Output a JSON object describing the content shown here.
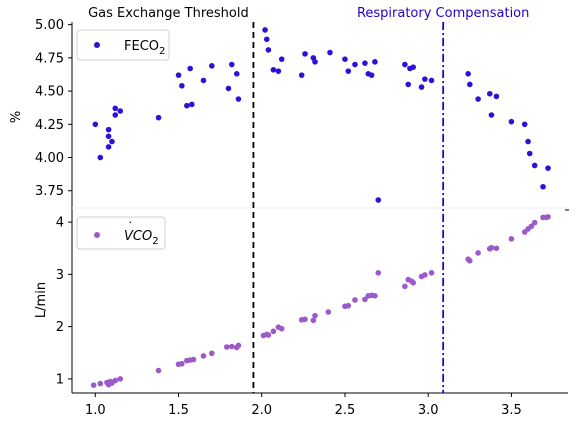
{
  "chart_data": [
    {
      "type": "scatter",
      "panel": "top",
      "ylabel": "%",
      "ylim": [
        3.62,
        5.02
      ],
      "yticks": [
        "3.75",
        "4.00",
        "4.25",
        "4.50",
        "4.75",
        "5.00"
      ],
      "legend": {
        "label": "FECO",
        "subscript": "2",
        "placement": "top-left"
      },
      "color": "#2b12d6",
      "points": [
        [
          1.0,
          4.25
        ],
        [
          1.03,
          4.0
        ],
        [
          1.08,
          4.08
        ],
        [
          1.08,
          4.16
        ],
        [
          1.08,
          4.21
        ],
        [
          1.1,
          4.12
        ],
        [
          1.12,
          4.32
        ],
        [
          1.12,
          4.37
        ],
        [
          1.15,
          4.35
        ],
        [
          1.38,
          4.3
        ],
        [
          1.5,
          4.62
        ],
        [
          1.52,
          4.54
        ],
        [
          1.55,
          4.39
        ],
        [
          1.57,
          4.67
        ],
        [
          1.58,
          4.4
        ],
        [
          1.65,
          4.58
        ],
        [
          1.7,
          4.69
        ],
        [
          1.8,
          4.52
        ],
        [
          1.82,
          4.7
        ],
        [
          1.85,
          4.63
        ],
        [
          1.86,
          4.44
        ],
        [
          2.02,
          4.96
        ],
        [
          2.03,
          4.89
        ],
        [
          2.04,
          4.81
        ],
        [
          2.07,
          4.66
        ],
        [
          2.1,
          4.65
        ],
        [
          2.12,
          4.74
        ],
        [
          2.24,
          4.62
        ],
        [
          2.26,
          4.78
        ],
        [
          2.31,
          4.75
        ],
        [
          2.32,
          4.72
        ],
        [
          2.41,
          4.79
        ],
        [
          2.5,
          4.74
        ],
        [
          2.52,
          4.65
        ],
        [
          2.56,
          4.7
        ],
        [
          2.62,
          4.71
        ],
        [
          2.64,
          4.63
        ],
        [
          2.66,
          4.62
        ],
        [
          2.68,
          4.72
        ],
        [
          2.7,
          3.68
        ],
        [
          2.86,
          4.7
        ],
        [
          2.88,
          4.55
        ],
        [
          2.89,
          4.67
        ],
        [
          2.91,
          4.68
        ],
        [
          2.96,
          4.53
        ],
        [
          2.98,
          4.59
        ],
        [
          3.02,
          4.58
        ],
        [
          3.24,
          4.63
        ],
        [
          3.25,
          4.55
        ],
        [
          3.3,
          4.44
        ],
        [
          3.37,
          4.48
        ],
        [
          3.38,
          4.32
        ],
        [
          3.41,
          4.46
        ],
        [
          3.5,
          4.27
        ],
        [
          3.58,
          4.25
        ],
        [
          3.6,
          4.12
        ],
        [
          3.61,
          4.03
        ],
        [
          3.64,
          3.94
        ],
        [
          3.69,
          3.78
        ],
        [
          3.72,
          3.92
        ]
      ]
    },
    {
      "type": "scatter",
      "panel": "bottom",
      "ylabel": "L/min",
      "xlabel": "",
      "ylim": [
        0.73,
        4.27
      ],
      "yticks": [
        "1",
        "2",
        "3",
        "4"
      ],
      "legend": {
        "label": "VCO",
        "subscript": "2",
        "dot": "˙",
        "placement": "top-left"
      },
      "color": "#9b59c9",
      "points": [
        [
          0.99,
          0.88
        ],
        [
          1.03,
          0.91
        ],
        [
          1.07,
          0.93
        ],
        [
          1.08,
          0.89
        ],
        [
          1.09,
          0.95
        ],
        [
          1.1,
          0.92
        ],
        [
          1.12,
          0.97
        ],
        [
          1.15,
          1.0
        ],
        [
          1.38,
          1.16
        ],
        [
          1.5,
          1.28
        ],
        [
          1.52,
          1.29
        ],
        [
          1.55,
          1.35
        ],
        [
          1.57,
          1.36
        ],
        [
          1.59,
          1.37
        ],
        [
          1.65,
          1.44
        ],
        [
          1.7,
          1.49
        ],
        [
          1.79,
          1.61
        ],
        [
          1.82,
          1.62
        ],
        [
          1.85,
          1.6
        ],
        [
          1.86,
          1.64
        ],
        [
          2.01,
          1.83
        ],
        [
          2.03,
          1.85
        ],
        [
          2.04,
          1.84
        ],
        [
          2.07,
          1.91
        ],
        [
          2.1,
          1.99
        ],
        [
          2.12,
          1.96
        ],
        [
          2.24,
          2.13
        ],
        [
          2.26,
          2.14
        ],
        [
          2.31,
          2.12
        ],
        [
          2.32,
          2.21
        ],
        [
          2.4,
          2.28
        ],
        [
          2.5,
          2.39
        ],
        [
          2.52,
          2.4
        ],
        [
          2.56,
          2.51
        ],
        [
          2.62,
          2.52
        ],
        [
          2.64,
          2.59
        ],
        [
          2.66,
          2.6
        ],
        [
          2.68,
          2.59
        ],
        [
          2.7,
          3.03
        ],
        [
          2.86,
          2.77
        ],
        [
          2.88,
          2.9
        ],
        [
          2.9,
          2.87
        ],
        [
          2.91,
          2.84
        ],
        [
          2.96,
          2.96
        ],
        [
          2.98,
          2.99
        ],
        [
          3.02,
          3.03
        ],
        [
          3.24,
          3.29
        ],
        [
          3.25,
          3.26
        ],
        [
          3.3,
          3.41
        ],
        [
          3.37,
          3.49
        ],
        [
          3.38,
          3.51
        ],
        [
          3.41,
          3.5
        ],
        [
          3.5,
          3.68
        ],
        [
          3.58,
          3.81
        ],
        [
          3.6,
          3.87
        ],
        [
          3.62,
          3.92
        ],
        [
          3.64,
          3.99
        ],
        [
          3.69,
          4.09
        ],
        [
          3.72,
          4.1
        ],
        [
          3.71,
          4.09
        ]
      ]
    }
  ],
  "xaxis": {
    "xlim": [
      0.86,
      3.84
    ],
    "xticks": [
      "1.0",
      "1.5",
      "2.0",
      "2.5",
      "3.0",
      "3.5"
    ]
  },
  "thresholds": [
    {
      "label": "Gas Exchange Threshold",
      "x": 1.95,
      "style": "dashed",
      "color": "#000000",
      "label_color": "#000000"
    },
    {
      "label": "Respiratory Compensation",
      "x": 3.09,
      "style": "dashdot",
      "color": "#2a00c8",
      "label_color": "#2a00c8"
    }
  ]
}
